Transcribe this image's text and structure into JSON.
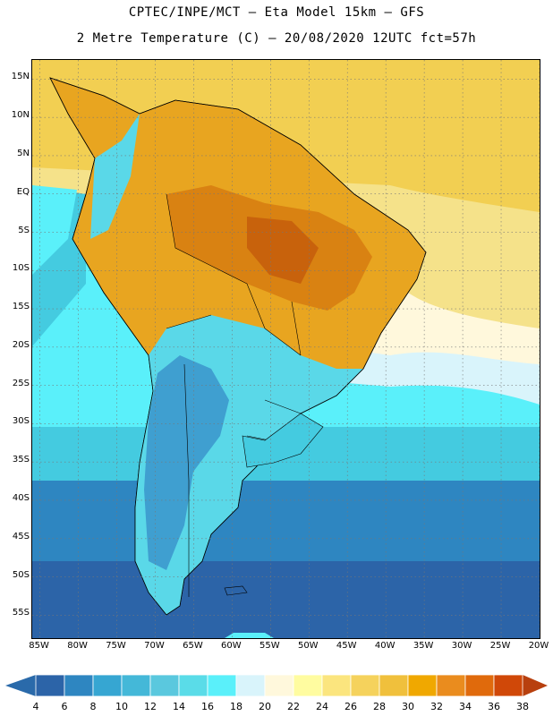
{
  "header": {
    "line1": "CPTEC/INPE/MCT –  Eta Model 15km – GFS",
    "line2": "2 Metre Temperature (C) – 20/08/2020 12UTC fct=57h"
  },
  "map": {
    "lat_labels": [
      "15N",
      "10N",
      "5N",
      "EQ",
      "5S",
      "10S",
      "15S",
      "20S",
      "25S",
      "30S",
      "35S",
      "40S",
      "45S",
      "50S",
      "55S"
    ],
    "lat_values": [
      15,
      10,
      5,
      0,
      -5,
      -10,
      -15,
      -20,
      -25,
      -30,
      -35,
      -40,
      -45,
      -50,
      -55
    ],
    "lon_labels": [
      "85W",
      "80W",
      "75W",
      "70W",
      "65W",
      "60W",
      "55W",
      "50W",
      "45W",
      "40W",
      "35W",
      "30W",
      "25W",
      "20W"
    ],
    "lon_values": [
      -85,
      -80,
      -75,
      -70,
      -65,
      -60,
      -55,
      -50,
      -45,
      -40,
      -35,
      -30,
      -25,
      -20
    ],
    "lat_range": [
      -58,
      17.5
    ],
    "lon_range": [
      -86,
      -20
    ],
    "ocean_colors": [
      "#f2cf52",
      "#f5e28a",
      "#fff8dc",
      "#d9f4fb",
      "#5af0fa",
      "#44cbe0",
      "#36a6d2",
      "#2e86c1",
      "#2c64a8"
    ]
  },
  "colorbar": {
    "labels": [
      "4",
      "6",
      "8",
      "10",
      "12",
      "14",
      "16",
      "18",
      "20",
      "22",
      "24",
      "26",
      "28",
      "30",
      "32",
      "34",
      "36",
      "38"
    ],
    "colors": [
      "#2c64a8",
      "#2e86c1",
      "#36a6d2",
      "#44b8d8",
      "#5ac8de",
      "#5adce8",
      "#5af0fa",
      "#d9f4fb",
      "#fff8dc",
      "#fffca0",
      "#fbe57e",
      "#f5d25c",
      "#f0c03c",
      "#f0a800",
      "#ea8c1e",
      "#e06a0c",
      "#d04808",
      "#c03c14"
    ],
    "low_arrow_color": "#2a6aaa",
    "high_arrow_color": "#b8400e"
  }
}
